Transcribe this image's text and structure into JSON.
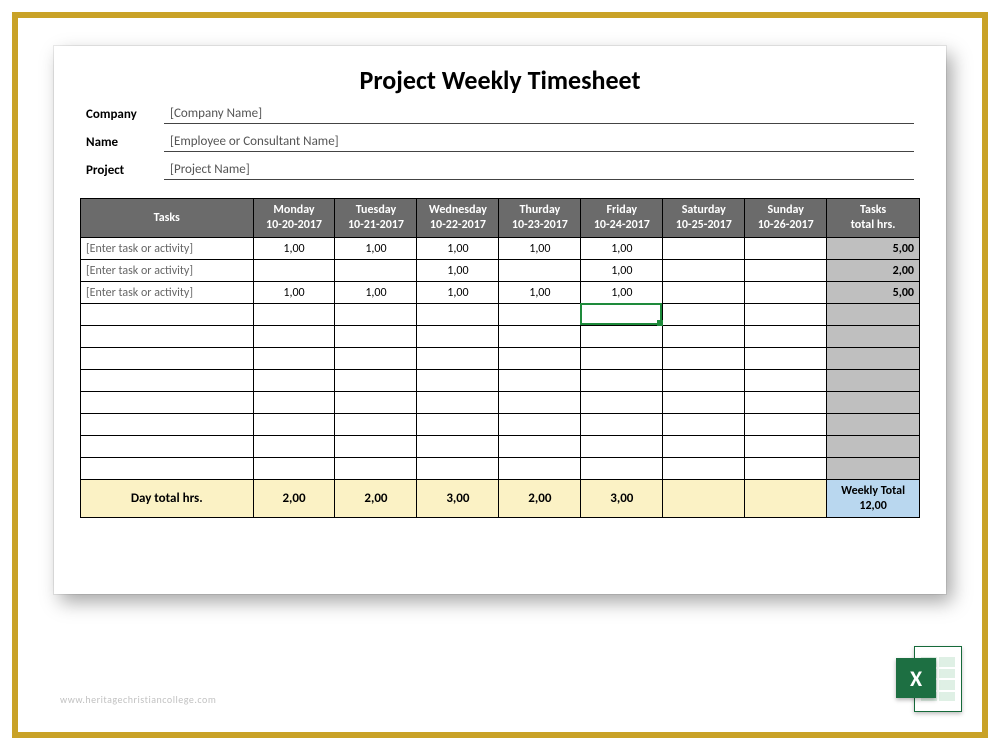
{
  "title": "Project Weekly Timesheet",
  "meta": {
    "company_label": "Company",
    "company_value": "[Company Name]",
    "name_label": "Name",
    "name_value": "[Employee or Consultant Name]",
    "project_label": "Project",
    "project_value": "[Project Name]"
  },
  "columns": {
    "tasks": "Tasks",
    "days": [
      {
        "name": "Monday",
        "date": "10-20-2017"
      },
      {
        "name": "Tuesday",
        "date": "10-21-2017"
      },
      {
        "name": "Wednesday",
        "date": "10-22-2017"
      },
      {
        "name": "Thurday",
        "date": "10-23-2017"
      },
      {
        "name": "Friday",
        "date": "10-24-2017"
      },
      {
        "name": "Saturday",
        "date": "10-25-2017"
      },
      {
        "name": "Sunday",
        "date": "10-26-2017"
      }
    ],
    "task_total": "Tasks\ntotal hrs."
  },
  "rows": [
    {
      "task": "[Enter task or activity]",
      "hours": [
        "1,00",
        "1,00",
        "1,00",
        "1,00",
        "1,00",
        "",
        ""
      ],
      "total": "5,00"
    },
    {
      "task": "[Enter task or activity]",
      "hours": [
        "",
        "",
        "1,00",
        "",
        "1,00",
        "",
        ""
      ],
      "total": "2,00"
    },
    {
      "task": "[Enter task or activity]",
      "hours": [
        "1,00",
        "1,00",
        "1,00",
        "1,00",
        "1,00",
        "",
        ""
      ],
      "total": "5,00"
    },
    {
      "task": "",
      "hours": [
        "",
        "",
        "",
        "",
        "",
        "",
        ""
      ],
      "total": ""
    },
    {
      "task": "",
      "hours": [
        "",
        "",
        "",
        "",
        "",
        "",
        ""
      ],
      "total": ""
    },
    {
      "task": "",
      "hours": [
        "",
        "",
        "",
        "",
        "",
        "",
        ""
      ],
      "total": ""
    },
    {
      "task": "",
      "hours": [
        "",
        "",
        "",
        "",
        "",
        "",
        ""
      ],
      "total": ""
    },
    {
      "task": "",
      "hours": [
        "",
        "",
        "",
        "",
        "",
        "",
        ""
      ],
      "total": ""
    },
    {
      "task": "",
      "hours": [
        "",
        "",
        "",
        "",
        "",
        "",
        ""
      ],
      "total": ""
    },
    {
      "task": "",
      "hours": [
        "",
        "",
        "",
        "",
        "",
        "",
        ""
      ],
      "total": ""
    },
    {
      "task": "",
      "hours": [
        "",
        "",
        "",
        "",
        "",
        "",
        ""
      ],
      "total": ""
    }
  ],
  "totals_row": {
    "label": "Day total hrs.",
    "day_totals": [
      "2,00",
      "2,00",
      "3,00",
      "2,00",
      "3,00",
      "",
      ""
    ],
    "weekly_label": "Weekly Total",
    "weekly_value": "12,00"
  },
  "active_cell": {
    "row": 3,
    "day": 4
  },
  "colors": {
    "frame_border": "#c9a227",
    "header_bg": "#6b6b6b",
    "header_fg": "#ffffff",
    "grid_border": "#000000",
    "task_total_bg": "#bfbfbf",
    "day_total_bg": "#fbf2c5",
    "weekly_total_bg": "#b9d7ef",
    "selection_border": "#1e8a3b",
    "placeholder_text": "#666666"
  },
  "typography": {
    "title_fontsize": 26,
    "label_fontsize": 13,
    "cell_fontsize": 12
  },
  "icon": {
    "letter": "X"
  },
  "watermark": "www.heritagechristiancollege.com"
}
